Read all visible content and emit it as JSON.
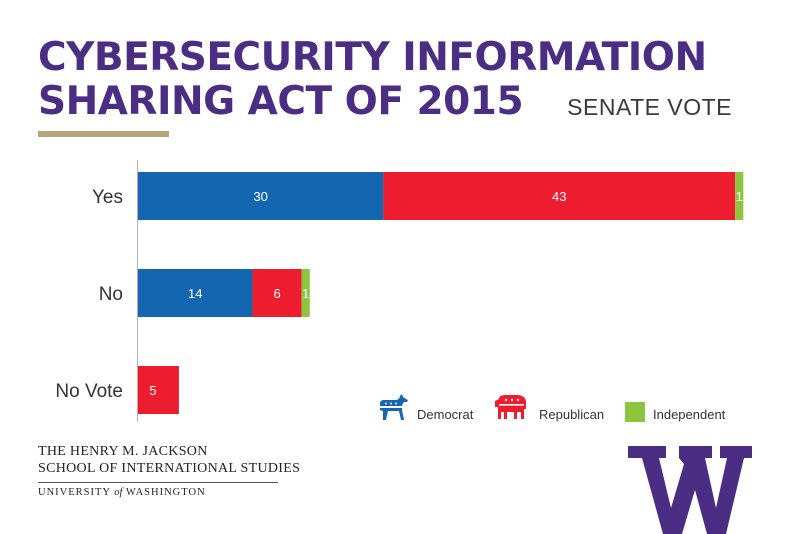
{
  "header": {
    "title_line1": "CYBERSECURITY INFORMATION",
    "title_line2": "SHARING ACT OF 2015",
    "subtitle": "SENATE VOTE"
  },
  "colors": {
    "democrat": "#1566b0",
    "republican": "#ed1c2e",
    "independent": "#8cc63f",
    "title": "#4b2e83",
    "gold": "#b7a57a"
  },
  "chart_data": {
    "type": "bar",
    "orientation": "horizontal",
    "stacked": true,
    "categories": [
      "Yes",
      "No",
      "No Vote"
    ],
    "series": [
      {
        "name": "Democrat",
        "values": [
          30,
          14,
          5
        ]
      },
      {
        "name": "Republican",
        "values": [
          43,
          6,
          0
        ]
      },
      {
        "name": "Independent",
        "values": [
          1,
          1,
          0
        ]
      }
    ],
    "note_no_vote_color": "republican",
    "title": "CYBERSECURITY INFORMATION SHARING ACT OF 2015",
    "subtitle": "SENATE VOTE",
    "xlim": [
      0,
      74
    ],
    "grid": false,
    "legend_position": "bottom-right"
  },
  "legend": [
    {
      "label": "Democrat",
      "icon": "donkey-icon"
    },
    {
      "label": "Republican",
      "icon": "elephant-icon"
    },
    {
      "label": "Independent",
      "icon": "square-icon"
    }
  ],
  "footer": {
    "line1": "THE HENRY M. JACKSON",
    "line2": "SCHOOL OF INTERNATIONAL STUDIES",
    "line3_a": "UNIVERSITY",
    "line3_of": "of",
    "line3_b": "WASHINGTON"
  }
}
